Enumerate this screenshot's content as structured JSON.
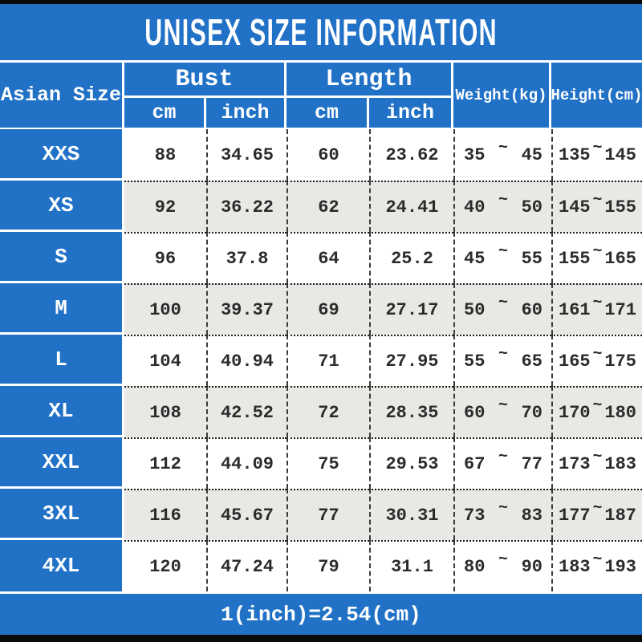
{
  "colors": {
    "accent_blue": "#2172c6",
    "row_alt_gray": "#e9e8e5",
    "bar_black": "#0a0a0a",
    "text_dark": "#2b2b2b",
    "text_white": "#ffffff"
  },
  "chart_data": {
    "type": "table",
    "title": "UNISEX SIZE INFORMATION",
    "column_groups": [
      {
        "label": "Asian Size",
        "span": 1
      },
      {
        "label": "Bust",
        "span": 2,
        "subs": [
          "cm",
          "inch"
        ]
      },
      {
        "label": "Length",
        "span": 2,
        "subs": [
          "cm",
          "inch"
        ]
      },
      {
        "label": "Weight(kg)",
        "span": 1
      },
      {
        "label": "Height(cm)",
        "span": 1
      }
    ],
    "range_separator": "~",
    "rows": [
      {
        "size": "XXS",
        "bust_cm": "88",
        "bust_inch": "34.65",
        "length_cm": "60",
        "length_inch": "23.62",
        "weight_min": "35",
        "weight_max": "45",
        "height_min": "135",
        "height_max": "145"
      },
      {
        "size": "XS",
        "bust_cm": "92",
        "bust_inch": "36.22",
        "length_cm": "62",
        "length_inch": "24.41",
        "weight_min": "40",
        "weight_max": "50",
        "height_min": "145",
        "height_max": "155"
      },
      {
        "size": "S",
        "bust_cm": "96",
        "bust_inch": "37.8",
        "length_cm": "64",
        "length_inch": "25.2",
        "weight_min": "45",
        "weight_max": "55",
        "height_min": "155",
        "height_max": "165"
      },
      {
        "size": "M",
        "bust_cm": "100",
        "bust_inch": "39.37",
        "length_cm": "69",
        "length_inch": "27.17",
        "weight_min": "50",
        "weight_max": "60",
        "height_min": "161",
        "height_max": "171"
      },
      {
        "size": "L",
        "bust_cm": "104",
        "bust_inch": "40.94",
        "length_cm": "71",
        "length_inch": "27.95",
        "weight_min": "55",
        "weight_max": "65",
        "height_min": "165",
        "height_max": "175"
      },
      {
        "size": "XL",
        "bust_cm": "108",
        "bust_inch": "42.52",
        "length_cm": "72",
        "length_inch": "28.35",
        "weight_min": "60",
        "weight_max": "70",
        "height_min": "170",
        "height_max": "180"
      },
      {
        "size": "XXL",
        "bust_cm": "112",
        "bust_inch": "44.09",
        "length_cm": "75",
        "length_inch": "29.53",
        "weight_min": "67",
        "weight_max": "77",
        "height_min": "173",
        "height_max": "183"
      },
      {
        "size": "3XL",
        "bust_cm": "116",
        "bust_inch": "45.67",
        "length_cm": "77",
        "length_inch": "30.31",
        "weight_min": "73",
        "weight_max": "83",
        "height_min": "177",
        "height_max": "187"
      },
      {
        "size": "4XL",
        "bust_cm": "120",
        "bust_inch": "47.24",
        "length_cm": "79",
        "length_inch": "31.1",
        "weight_min": "80",
        "weight_max": "90",
        "height_min": "183",
        "height_max": "193"
      }
    ],
    "footnote": "1(inch)=2.54(cm)"
  }
}
